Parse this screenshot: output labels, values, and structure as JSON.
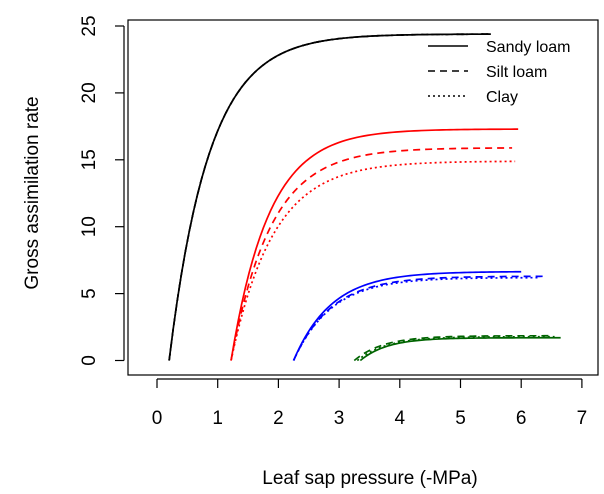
{
  "chart_data": {
    "type": "line",
    "title": "",
    "xlabel": "Leaf sap pressure (-MPa)",
    "ylabel": "Gross assimilation rate",
    "xlim": [
      0,
      7
    ],
    "ylim": [
      0,
      25
    ],
    "x_ticks": [
      "0",
      "1",
      "2",
      "3",
      "4",
      "5",
      "6",
      "7"
    ],
    "y_ticks": [
      "0",
      "5",
      "10",
      "15",
      "20",
      "25"
    ],
    "grid": false,
    "legend_position": "top-right",
    "legend": [
      {
        "label": "Sandy loam",
        "dash": "solid"
      },
      {
        "label": "Silt loam",
        "dash": "dashed"
      },
      {
        "label": "Clay",
        "dash": "dotted"
      }
    ],
    "colors": {
      "black": "#000000",
      "red": "#ff0000",
      "blue": "#0000ff",
      "green": "#006400"
    },
    "series": [
      {
        "group": "black",
        "color": "#000000",
        "dash": "solid",
        "x0": 0.2,
        "x1": 5.5,
        "ymax": 24.4,
        "k": 0.95
      },
      {
        "group": "black",
        "color": "#000000",
        "dash": "dashed",
        "x0": 0.2,
        "x1": 5.5,
        "ymax": 24.4,
        "k": 0.95
      },
      {
        "group": "black",
        "color": "#000000",
        "dash": "dotted",
        "x0": 0.2,
        "x1": 5.5,
        "ymax": 24.4,
        "k": 0.95
      },
      {
        "group": "red",
        "color": "#ff0000",
        "dash": "solid",
        "x0": 1.22,
        "x1": 5.95,
        "ymax": 17.3,
        "k": 1.0
      },
      {
        "group": "red",
        "color": "#ff0000",
        "dash": "dashed",
        "x0": 1.22,
        "x1": 5.85,
        "ymax": 15.9,
        "k": 0.95
      },
      {
        "group": "red",
        "color": "#ff0000",
        "dash": "dotted",
        "x0": 1.22,
        "x1": 5.9,
        "ymax": 14.9,
        "k": 0.9
      },
      {
        "group": "blue",
        "color": "#0000ff",
        "dash": "solid",
        "x0": 2.25,
        "x1": 6.0,
        "ymax": 6.65,
        "k": 1.0
      },
      {
        "group": "blue",
        "color": "#0000ff",
        "dash": "dashed",
        "x0": 2.25,
        "x1": 6.4,
        "ymax": 6.3,
        "k": 1.0
      },
      {
        "group": "blue",
        "color": "#0000ff",
        "dash": "dotted",
        "x0": 2.25,
        "x1": 6.3,
        "ymax": 6.2,
        "k": 1.0
      },
      {
        "group": "green",
        "color": "#006400",
        "dash": "solid",
        "x0": 3.35,
        "x1": 6.65,
        "ymax": 1.7,
        "k": 1.4
      },
      {
        "group": "green",
        "color": "#006400",
        "dash": "dashed",
        "x0": 3.25,
        "x1": 6.5,
        "ymax": 1.85,
        "k": 1.3
      },
      {
        "group": "green",
        "color": "#006400",
        "dash": "dotted",
        "x0": 3.3,
        "x1": 6.55,
        "ymax": 1.78,
        "k": 1.3
      }
    ]
  }
}
